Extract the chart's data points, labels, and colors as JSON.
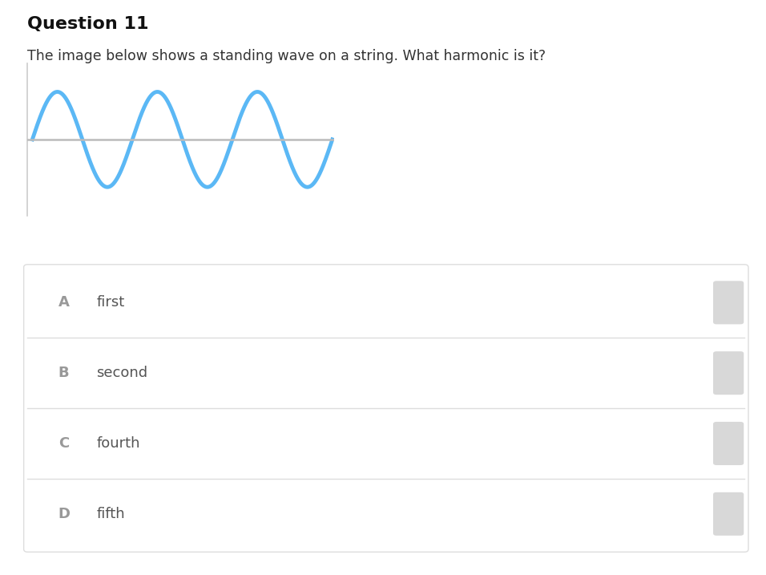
{
  "title": "Question 11",
  "question_text": "The image below shows a standing wave on a string. What harmonic is it?",
  "wave_color": "#5bb8f5",
  "wave_linewidth": 3.5,
  "axis_line_color": "#bbbbbb",
  "background_color": "#ffffff",
  "options": [
    {
      "label": "A",
      "text": "first"
    },
    {
      "label": "B",
      "text": "second"
    },
    {
      "label": "C",
      "text": "fourth"
    },
    {
      "label": "D",
      "text": "fifth"
    }
  ],
  "option_box_color": "#d8d8d8",
  "option_border_color": "#dddddd",
  "wave_num_cycles": 3,
  "wave_amplitude": 1.0,
  "title_fontsize": 16,
  "question_fontsize": 12.5,
  "option_label_fontsize": 13,
  "option_text_fontsize": 13,
  "label_color": "#999999",
  "text_color": "#555555"
}
